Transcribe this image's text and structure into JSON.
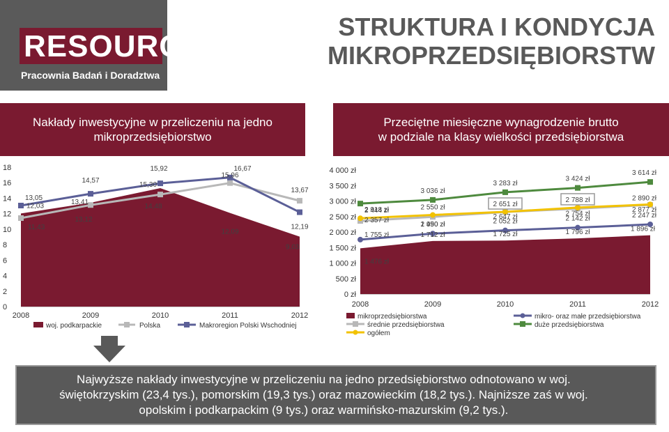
{
  "header": {
    "logo_text": "RESOURCE",
    "logo_subtitle": "Pracownia Badań i Doradztwa",
    "title_line1": "STRUKTURA I KONDYCJA",
    "title_line2": "MIKROPRZEDSIĘBIORSTW"
  },
  "left_banner": {
    "line1": "Nakłady inwestycyjne w przeliczeniu na jedno",
    "line2": "mikroprzedsiębiorstwo"
  },
  "right_banner": {
    "line1": "Przeciętne miesięczne wynagrodzenie brutto",
    "line2": "w podziale na klasy wielkości przedsiębiorstwa"
  },
  "summary": {
    "line1": "Najwyższe nakłady inwestycyjne w przeliczeniu na jedno przedsiębiorstwo odnotowano w woj.",
    "line2": "świętokrzyskim (23,4 tys.), pomorskim (19,3 tys.) oraz mazowieckim (18,2 tys.). Najniższe zaś w woj.",
    "line3": "opolskim i podkarpackim (9 tys.) oraz warmińsko-mazurskim (9,2 tys.)."
  },
  "colors": {
    "maroon": "#7a1a30",
    "gray_line": "#b8b8b8",
    "purple_line": "#5b5f97",
    "green_line": "#4e8a3e",
    "yellow_line": "#f2c200",
    "dark_panel": "#595959"
  },
  "chart_data": [
    {
      "type": "area",
      "x": [
        "2008",
        "2009",
        "2010",
        "2011",
        "2012"
      ],
      "ylim": [
        0,
        18
      ],
      "yticks": [
        "0",
        "2",
        "4",
        "6",
        "8",
        "10",
        "12",
        "14",
        "16",
        "18"
      ],
      "series": [
        {
          "name": "woj. podkarpackie",
          "kind": "area",
          "values": [
            12.03,
            13.41,
            15.3,
            12.09,
            9.03
          ],
          "labels": [
            "12,03",
            "13,41",
            "15,30",
            "12,09",
            "9,03"
          ]
        },
        {
          "name": "Polska",
          "kind": "line",
          "values": [
            11.43,
            13.12,
            14.48,
            15.96,
            13.67
          ],
          "labels": [
            "11,43",
            "13,12",
            "14,48",
            "15,96",
            "13,67"
          ]
        },
        {
          "name": "Makroregion Polski Wschodniej",
          "kind": "line",
          "values": [
            13.05,
            14.57,
            15.92,
            16.67,
            12.19
          ],
          "labels": [
            "13,05",
            "14,57",
            "15,92",
            "16,67",
            "12,19"
          ]
        }
      ]
    },
    {
      "type": "area",
      "x": [
        "2008",
        "2009",
        "2010",
        "2011",
        "2012"
      ],
      "ylim": [
        0,
        4000
      ],
      "yticks": [
        "0 zł",
        "500 zł",
        "1 000 zł",
        "1 500 zł",
        "2 000 zł",
        "2 500 zł",
        "3 000 zł",
        "3 500 zł",
        "4 000 zł"
      ],
      "series": [
        {
          "name": "mikroprzedsiębiorstwa",
          "kind": "area",
          "values": [
            1476,
            1712,
            1725,
            1796,
            1896
          ],
          "labels": [
            "1 476 zł",
            "1 712 zł",
            "1 725 zł",
            "1 796 zł",
            "1 896 zł"
          ]
        },
        {
          "name": "mikro- oraz małe przedsiębiorstwa",
          "kind": "line",
          "values": [
            1755,
            1950,
            2052,
            2142,
            2247
          ],
          "labels": [
            "1 755 zł",
            "1 950 zł",
            "2 052 zł",
            "2 142 zł",
            "2 247 zł"
          ]
        },
        {
          "name": "średnie przedsiębiorstwa",
          "kind": "line",
          "values": [
            2357,
            2490,
            2647,
            2754,
            2877
          ],
          "labels": [
            "2 357 zł",
            "2 490 zł",
            "2 647 zł",
            "2 754 zł",
            "2 877 zł"
          ]
        },
        {
          "name": "duże przedsiębiorstwa",
          "kind": "line",
          "values": [
            2918,
            3036,
            3283,
            3424,
            3614
          ],
          "labels": [
            "2 918 zł",
            "3 036 zł",
            "3 283 zł",
            "3 424 zł",
            "3 614 zł"
          ]
        },
        {
          "name": "ogółem",
          "kind": "line",
          "values": [
            2444,
            2550,
            2651,
            2788,
            2890
          ],
          "labels": [
            "2 444 zł",
            "2 550 zł",
            "2 651 zł",
            "2 788 zł",
            "2 890 zł"
          ]
        }
      ]
    }
  ]
}
